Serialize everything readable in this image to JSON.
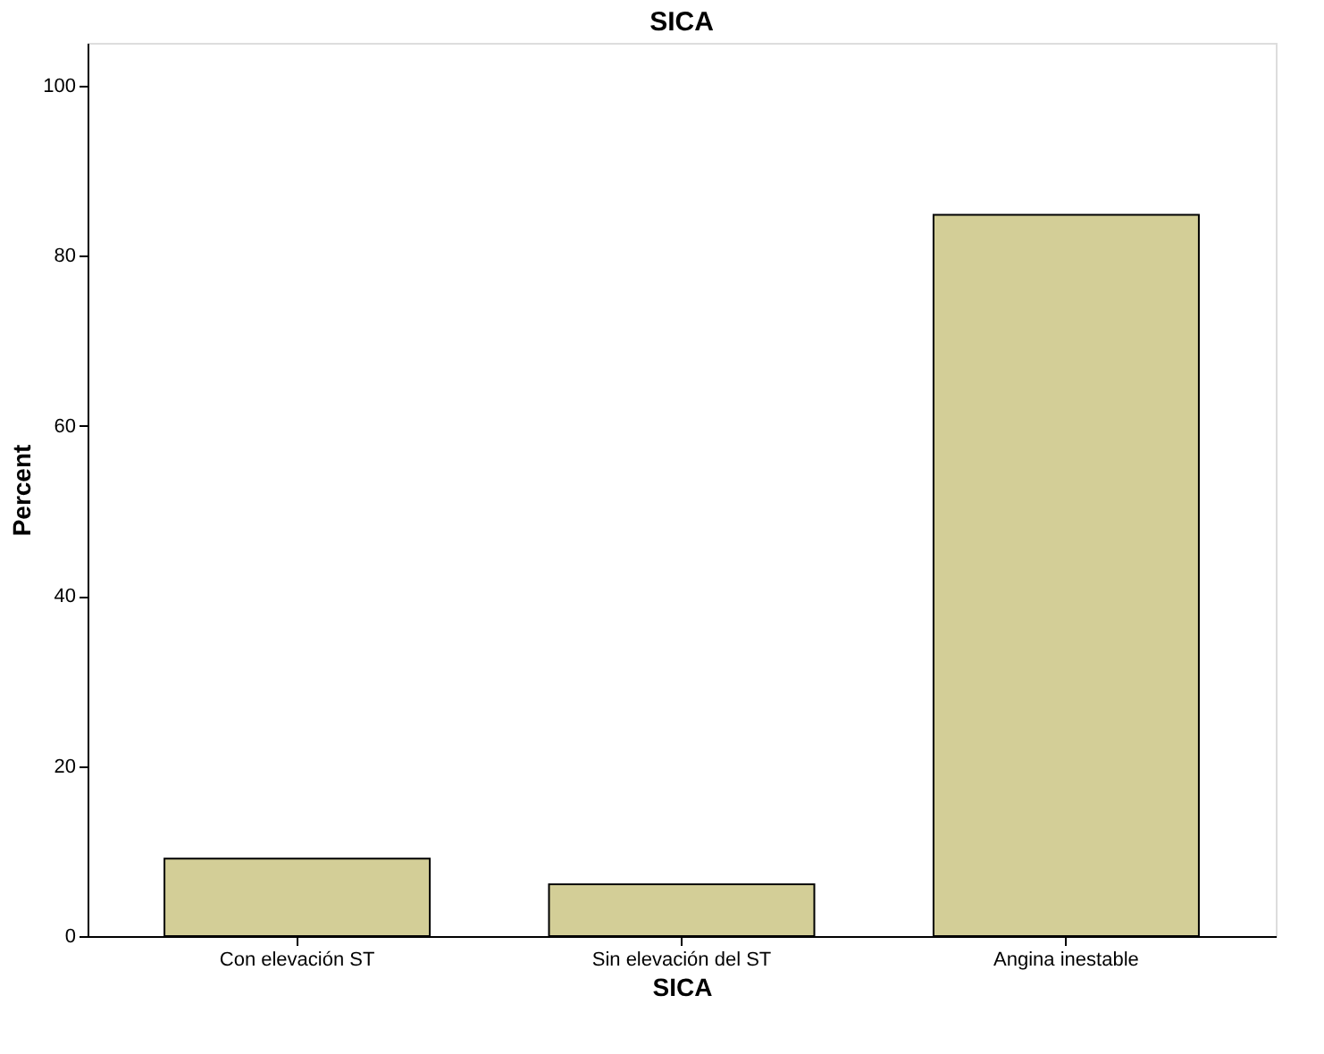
{
  "chart_data": {
    "type": "bar",
    "title": "SICA",
    "xlabel": "SICA",
    "ylabel": "Percent",
    "categories": [
      "Con elevación ST",
      "Sin elevación del ST",
      "Angina inestable"
    ],
    "values": [
      9.1,
      6.1,
      84.8
    ],
    "color": "#d3ce97",
    "ylim": [
      0,
      105
    ],
    "yticks": [
      0,
      20,
      40,
      60,
      80,
      100
    ],
    "grid": false
  }
}
